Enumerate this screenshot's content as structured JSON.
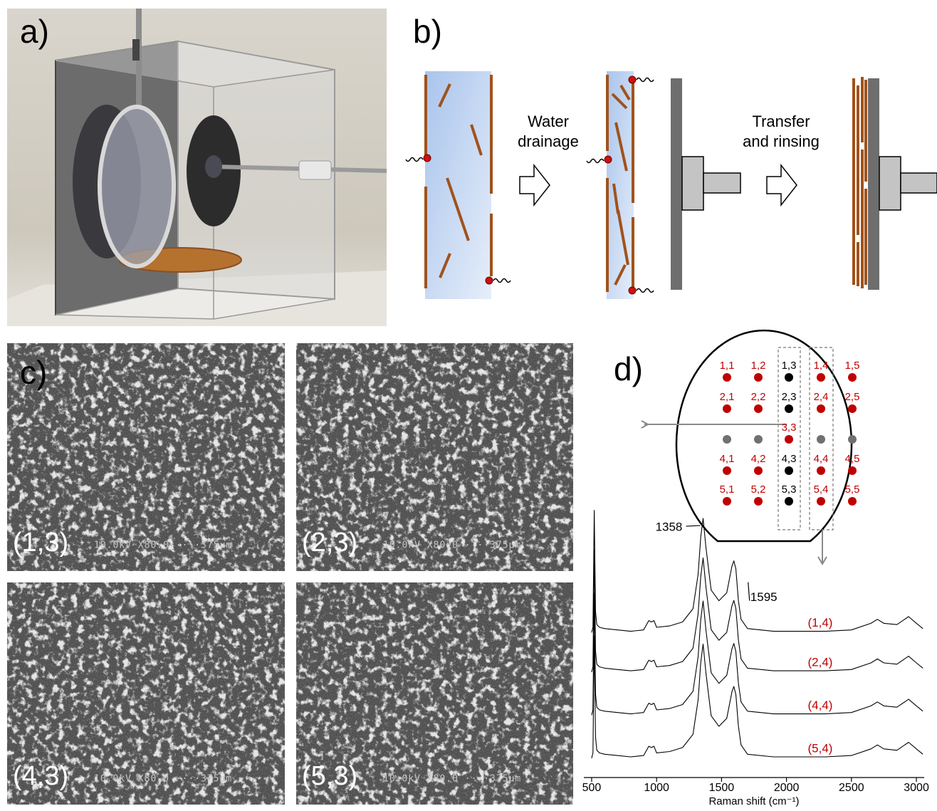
{
  "panel_labels": [
    "a)",
    "b)",
    "c)",
    "d)"
  ],
  "diagram": {
    "step1": [
      "Water",
      "drainage"
    ],
    "step2": [
      "Transfer",
      "and rinsing"
    ]
  },
  "sem": [
    {
      "label": "(1,3)",
      "caption": "10.0kV X80.0 ····375μm"
    },
    {
      "label": "(2,3)",
      "caption": "10.0kV X80.0 ····375μm"
    },
    {
      "label": "(4,3)",
      "caption": "10.0kV X80.0 ····375μm"
    },
    {
      "label": "(5,3)",
      "caption": "10.0kV X80.0 ····375μm"
    }
  ],
  "wafer": {
    "rows": [
      [
        {
          "label": "1,1",
          "color": "#c00000"
        },
        {
          "label": "1,2",
          "color": "#c00000"
        },
        {
          "label": "1,3",
          "color": "#000000"
        },
        {
          "label": "1,4",
          "color": "#c00000"
        },
        {
          "label": "1,5",
          "color": "#c00000"
        }
      ],
      [
        {
          "label": "2,1",
          "color": "#c00000"
        },
        {
          "label": "2,2",
          "color": "#c00000"
        },
        {
          "label": "2,3",
          "color": "#000000"
        },
        {
          "label": "2,4",
          "color": "#c00000"
        },
        {
          "label": "2,5",
          "color": "#c00000"
        }
      ],
      [
        {
          "label": null,
          "color": "#707070"
        },
        {
          "label": null,
          "color": "#707070"
        },
        {
          "label": "3,3",
          "color": "#c00000"
        },
        {
          "label": null,
          "color": "#707070"
        },
        {
          "label": null,
          "color": "#707070"
        }
      ],
      [
        {
          "label": "4,1",
          "color": "#c00000"
        },
        {
          "label": "4,2",
          "color": "#c00000"
        },
        {
          "label": "4,3",
          "color": "#000000"
        },
        {
          "label": "4,4",
          "color": "#c00000"
        },
        {
          "label": "4,5",
          "color": "#c00000"
        }
      ],
      [
        {
          "label": "5,1",
          "color": "#c00000"
        },
        {
          "label": "5,2",
          "color": "#c00000"
        },
        {
          "label": "5,3",
          "color": "#000000"
        },
        {
          "label": "5,4",
          "color": "#c00000"
        },
        {
          "label": "5,5",
          "color": "#c00000"
        }
      ]
    ]
  },
  "chart_data": {
    "type": "line",
    "x_label": "Raman shift (cm⁻¹)",
    "x": [
      500,
      510,
      520,
      530,
      540,
      560,
      600,
      700,
      800,
      900,
      940,
      960,
      980,
      1000,
      1100,
      1200,
      1280,
      1320,
      1340,
      1358,
      1380,
      1420,
      1480,
      1540,
      1580,
      1595,
      1610,
      1630,
      1650,
      1700,
      1900,
      2100,
      2300,
      2500,
      2650,
      2700,
      2750,
      2850,
      2940,
      3000,
      3050
    ],
    "xlim": [
      440,
      3060
    ],
    "xticks": [
      500,
      1000,
      1500,
      2000,
      2500,
      3000
    ],
    "ylim": [
      0,
      10
    ],
    "label_color": "#c00000",
    "annotations": [
      1358,
      1595
    ],
    "series": [
      {
        "name": "(1,4)",
        "color": "#000000",
        "values": [
          5.27,
          5.47,
          9.87,
          6.07,
          5.57,
          5.47,
          5.42,
          5.37,
          5.32,
          5.37,
          5.72,
          5.67,
          5.72,
          5.47,
          5.52,
          5.67,
          6.17,
          7.47,
          8.87,
          9.57,
          8.47,
          6.87,
          6.47,
          6.77,
          7.77,
          7.97,
          7.67,
          6.47,
          5.77,
          5.42,
          5.32,
          5.32,
          5.32,
          5.37,
          5.62,
          5.77,
          5.62,
          5.57,
          5.87,
          5.62,
          5.42
        ]
      },
      {
        "name": "(2,4)",
        "color": "#000000",
        "values": [
          3.78,
          3.98,
          8.38,
          4.58,
          4.08,
          3.98,
          3.93,
          3.88,
          3.83,
          3.88,
          4.23,
          4.18,
          4.23,
          3.98,
          4.03,
          4.18,
          4.68,
          5.98,
          7.38,
          8.08,
          6.98,
          5.38,
          4.98,
          5.28,
          6.28,
          6.48,
          6.18,
          4.98,
          4.28,
          3.93,
          3.83,
          3.83,
          3.83,
          3.88,
          4.13,
          4.28,
          4.13,
          4.08,
          4.38,
          4.13,
          3.93
        ]
      },
      {
        "name": "(4,4)",
        "color": "#000000",
        "values": [
          2.16,
          2.36,
          6.76,
          2.96,
          2.46,
          2.36,
          2.31,
          2.26,
          2.21,
          2.26,
          2.61,
          2.56,
          2.61,
          2.36,
          2.41,
          2.56,
          3.06,
          4.36,
          5.76,
          6.46,
          5.36,
          3.76,
          3.36,
          3.66,
          4.66,
          4.86,
          4.56,
          3.36,
          2.66,
          2.31,
          2.21,
          2.21,
          2.21,
          2.26,
          2.51,
          2.66,
          2.51,
          2.46,
          2.76,
          2.51,
          2.31
        ]
      },
      {
        "name": "(5,4)",
        "color": "#000000",
        "values": [
          0.54,
          0.74,
          5.14,
          1.34,
          0.84,
          0.74,
          0.69,
          0.64,
          0.59,
          0.64,
          0.99,
          0.94,
          0.99,
          0.74,
          0.79,
          0.94,
          1.44,
          2.74,
          4.14,
          4.84,
          3.74,
          2.14,
          1.74,
          2.04,
          3.04,
          3.24,
          2.94,
          1.74,
          1.04,
          0.69,
          0.59,
          0.59,
          0.59,
          0.64,
          0.89,
          1.04,
          0.89,
          0.84,
          1.14,
          0.89,
          0.69
        ]
      }
    ]
  }
}
